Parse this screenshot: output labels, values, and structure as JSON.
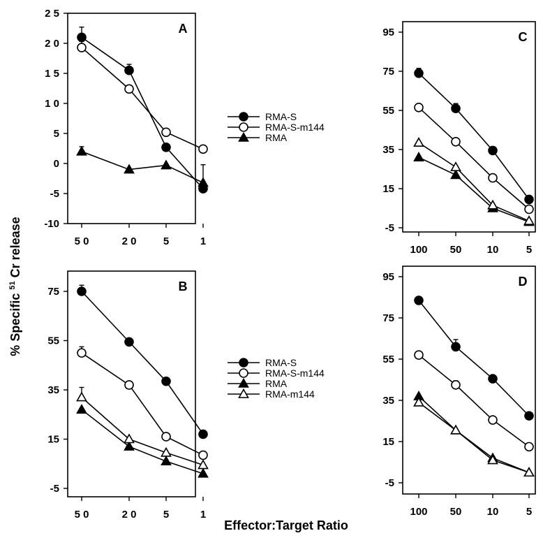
{
  "figure": {
    "ylabel_prefix": "% Specific ",
    "ylabel_superscript": "51",
    "ylabel_suffix": " Cr release",
    "xlabel": "Effector:Target Ratio"
  },
  "legend_top": [
    "RMA-S",
    "RMA-S-m144",
    "RMA"
  ],
  "legend_bottom": [
    "RMA-S",
    "RMA-S-m144",
    "RMA",
    "RMA-m144"
  ],
  "chart_data": [
    {
      "type": "line",
      "panel": "A",
      "categories": [
        "5 0",
        "2 0",
        "5",
        "1"
      ],
      "yticks": [
        "2 5",
        "2 0",
        "1 5",
        "1 0",
        "5",
        "0",
        "-5",
        "-10"
      ],
      "ylim": [
        -10,
        25
      ],
      "series": [
        {
          "name": "RMA-S",
          "marker": "filled-circle",
          "values": [
            21,
            15.5,
            2.7,
            -4.2
          ],
          "errors": [
            1.7,
            1.0,
            0,
            1.2
          ]
        },
        {
          "name": "RMA-S-m144",
          "marker": "open-circle",
          "values": [
            19.3,
            12.4,
            5.2,
            2.4
          ],
          "errors": [
            1.0,
            0,
            0,
            0
          ]
        },
        {
          "name": "RMA",
          "marker": "filled-triangle",
          "values": [
            2.0,
            -1.0,
            -0.3,
            -3.2
          ],
          "errors": [
            0.8,
            0,
            0,
            3.0
          ]
        }
      ]
    },
    {
      "type": "line",
      "panel": "B",
      "categories": [
        "5 0",
        "2 0",
        "5",
        "1"
      ],
      "yticks": [
        "75",
        "55",
        "35",
        "15",
        "-5"
      ],
      "ylim": [
        -5,
        80
      ],
      "series": [
        {
          "name": "RMA-S",
          "marker": "filled-circle",
          "values": [
            75,
            54.5,
            38.5,
            17
          ],
          "errors": [
            2.5,
            0,
            0,
            0
          ]
        },
        {
          "name": "RMA-S-m144",
          "marker": "open-circle",
          "values": [
            50,
            37,
            16,
            8.5
          ],
          "errors": [
            2.5,
            0,
            0,
            0
          ]
        },
        {
          "name": "RMA",
          "marker": "filled-triangle",
          "values": [
            27,
            12,
            6,
            1
          ],
          "errors": [
            0,
            0,
            0,
            0
          ]
        },
        {
          "name": "RMA-m144",
          "marker": "open-triangle",
          "values": [
            32,
            15,
            9.5,
            4.5
          ],
          "errors": [
            4,
            0,
            0,
            0
          ]
        }
      ]
    },
    {
      "type": "line",
      "panel": "C",
      "categories": [
        "100",
        "50",
        "10",
        "5"
      ],
      "yticks": [
        "95",
        "75",
        "55",
        "35",
        "15",
        "-5"
      ],
      "ylim": [
        -5,
        100
      ],
      "series": [
        {
          "name": "RMA-S",
          "marker": "filled-circle",
          "values": [
            74,
            56,
            34.5,
            9.5
          ],
          "errors": [
            2.5,
            2.5,
            0,
            0
          ]
        },
        {
          "name": "RMA-S-m144",
          "marker": "open-circle",
          "values": [
            56.5,
            39,
            20.5,
            4.5
          ],
          "errors": [
            0,
            0,
            0,
            0
          ]
        },
        {
          "name": "RMA",
          "marker": "filled-triangle",
          "values": [
            31,
            22,
            5,
            -2
          ],
          "errors": [
            0,
            0,
            0,
            0
          ]
        },
        {
          "name": "RMA-m144",
          "marker": "open-triangle",
          "values": [
            38.5,
            26,
            6.5,
            -1.5
          ],
          "errors": [
            0,
            0,
            0,
            0
          ]
        }
      ]
    },
    {
      "type": "line",
      "panel": "D",
      "categories": [
        "100",
        "50",
        "10",
        "5"
      ],
      "yticks": [
        "95",
        "75",
        "55",
        "35",
        "15",
        "-5"
      ],
      "ylim": [
        -5,
        100
      ],
      "series": [
        {
          "name": "RMA-S",
          "marker": "filled-circle",
          "values": [
            83.5,
            61,
            45.5,
            27.5
          ],
          "errors": [
            0,
            3.5,
            0,
            0
          ]
        },
        {
          "name": "RMA-S-m144",
          "marker": "open-circle",
          "values": [
            57,
            42.5,
            25.5,
            12.5
          ],
          "errors": [
            0,
            2,
            0,
            0
          ]
        },
        {
          "name": "RMA",
          "marker": "filled-triangle",
          "values": [
            37,
            20.5,
            7,
            0
          ],
          "errors": [
            0,
            0,
            0,
            0
          ]
        },
        {
          "name": "RMA-m144",
          "marker": "open-triangle",
          "values": [
            34,
            20.5,
            6,
            0
          ],
          "errors": [
            0,
            0,
            0,
            0
          ]
        }
      ]
    }
  ]
}
